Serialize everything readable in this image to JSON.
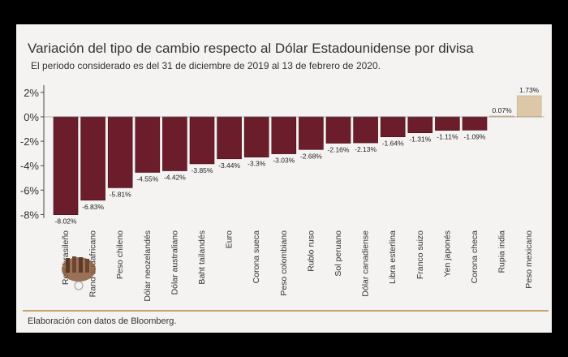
{
  "title": "Variación del tipo de cambio respecto al Dólar Estadounidense por divisa",
  "subtitle": "El periodo considerado es del 31 de diciembre de 2019 al 13 de febrero de 2020.",
  "footer": "Elaboración con datos de Bloomberg.",
  "colors": {
    "bar_negative": "#6b1d2b",
    "bar_positive": "#dcc7a6",
    "frame": "#000000",
    "panel": "#f4f3f1",
    "accent_line": "#c7a26e"
  },
  "chart_data": {
    "type": "bar",
    "title": "Variación del tipo de cambio respecto al Dólar Estadounidense por divisa",
    "subtitle": "El periodo considerado es del 31 de diciembre de 2019 al 13 de febrero de 2020.",
    "categories": [
      "Real brasileño",
      "Rand sudafricano",
      "Peso chileno",
      "Dólar neozelandés",
      "Dólar australiano",
      "Baht tailandés",
      "Euro",
      "Corona sueca",
      "Peso colombiano",
      "Rublo ruso",
      "Sol peruano",
      "Dólar canadiense",
      "Libra esterlina",
      "Franco suizo",
      "Yen japonés",
      "Corona checa",
      "Rupia india",
      "Peso mexicano"
    ],
    "values": [
      -8.02,
      -6.83,
      -5.81,
      -4.55,
      -4.42,
      -3.85,
      -3.44,
      -3.3,
      -3.03,
      -2.68,
      -2.16,
      -2.13,
      -1.64,
      -1.31,
      -1.11,
      -1.09,
      0.07,
      1.73
    ],
    "value_labels": [
      "-8.02%",
      "-6.83%",
      "-5.81%",
      "-4.55%",
      "-4.42%",
      "-3.85%",
      "-3.44%",
      "-3.3%",
      "-3.03%",
      "-2.68%",
      "-2.16%",
      "-2.13%",
      "-1.64%",
      "-1.31%",
      "-1.11%",
      "-1.09%",
      "0.07%",
      "1.73%"
    ],
    "yticks": [
      "2%",
      "0%",
      "-2%",
      "-4%",
      "-6%",
      "-8%"
    ],
    "ytick_values": [
      2,
      0,
      -2,
      -4,
      -6,
      -8
    ],
    "ylim": [
      -8.3,
      2.6
    ],
    "xlabel": "",
    "ylabel": "",
    "grid": false,
    "legend": "none"
  }
}
